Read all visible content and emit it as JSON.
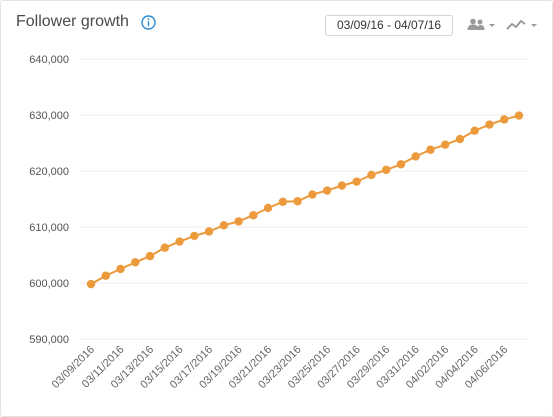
{
  "header": {
    "title": "Follower growth",
    "date_range": "03/09/16 - 04/07/16",
    "icons": [
      "info-icon",
      "people-icon",
      "line-chart-icon",
      "chevron-down-icon"
    ]
  },
  "colors": {
    "series": "#EC9A3C",
    "grid": "#ececec",
    "accent": "#2A8BD6"
  },
  "chart_data": {
    "type": "line",
    "title": "Follower growth",
    "xlabel": "",
    "ylabel": "",
    "ylim": [
      590000,
      640000
    ],
    "yticks": [
      590000,
      600000,
      610000,
      620000,
      630000,
      640000
    ],
    "ytick_labels": [
      "590,000",
      "600,000",
      "610,000",
      "620,000",
      "630,000",
      "640,000"
    ],
    "grid": true,
    "x": [
      "03/09/2016",
      "03/10/2016",
      "03/11/2016",
      "03/12/2016",
      "03/13/2016",
      "03/14/2016",
      "03/15/2016",
      "03/16/2016",
      "03/17/2016",
      "03/18/2016",
      "03/19/2016",
      "03/20/2016",
      "03/21/2016",
      "03/22/2016",
      "03/23/2016",
      "03/24/2016",
      "03/25/2016",
      "03/26/2016",
      "03/27/2016",
      "03/28/2016",
      "03/29/2016",
      "03/30/2016",
      "03/31/2016",
      "04/01/2016",
      "04/02/2016",
      "04/03/2016",
      "04/04/2016",
      "04/05/2016",
      "04/06/2016",
      "04/07/2016"
    ],
    "xtick_labels": [
      "03/09/2016",
      "03/11/2016",
      "03/13/2016",
      "03/15/2016",
      "03/17/2016",
      "03/19/2016",
      "03/21/2016",
      "03/23/2016",
      "03/25/2016",
      "03/27/2016",
      "03/29/2016",
      "03/31/2016",
      "04/02/2016",
      "04/04/2016",
      "04/06/2016"
    ],
    "series": [
      {
        "values": [
          599800,
          601300,
          602500,
          603700,
          604800,
          606300,
          607400,
          608400,
          609200,
          610300,
          611000,
          612100,
          613400,
          614500,
          614600,
          615800,
          616500,
          617400,
          618100,
          619300,
          620200,
          621200,
          622600,
          623800,
          624700,
          625700,
          627200,
          628300,
          629200,
          629900
        ]
      }
    ]
  }
}
